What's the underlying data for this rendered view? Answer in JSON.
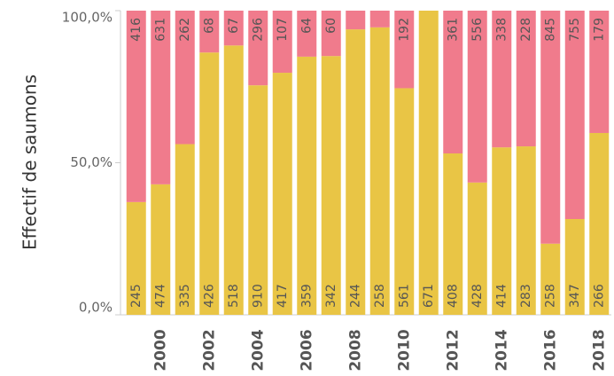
{
  "chart_data": {
    "type": "bar",
    "stacking": "percent",
    "y_label": "Effectif de saumons",
    "categories": [
      null,
      "2000",
      null,
      "2002",
      null,
      "2004",
      null,
      "2006",
      null,
      "2008",
      null,
      "2010",
      null,
      "2012",
      null,
      "2014",
      null,
      "2016",
      null,
      "2018"
    ],
    "series": [
      {
        "color": "#e9c545",
        "values": [
          245,
          474,
          335,
          426,
          518,
          910,
          417,
          359,
          342,
          244,
          258,
          561,
          671,
          408,
          428,
          414,
          283,
          258,
          347,
          266
        ]
      },
      {
        "color": "#f07b8c",
        "values": [
          416,
          631,
          262,
          68,
          67,
          296,
          107,
          64,
          60,
          16,
          15,
          192,
          0,
          361,
          556,
          338,
          228,
          845,
          755,
          179
        ],
        "value_labels": [
          "416",
          "631",
          "262",
          "68",
          "67",
          "296",
          "107",
          "64",
          "60",
          null,
          null,
          "192",
          null,
          "361",
          "556",
          "338",
          "228",
          "845",
          "755",
          "179"
        ]
      }
    ],
    "ylim": [
      0,
      100
    ],
    "yticks": [
      {
        "value": 0,
        "label": "0,0%"
      },
      {
        "value": 50,
        "label": "50,0%"
      },
      {
        "value": 100,
        "label": "100,0%"
      }
    ]
  }
}
